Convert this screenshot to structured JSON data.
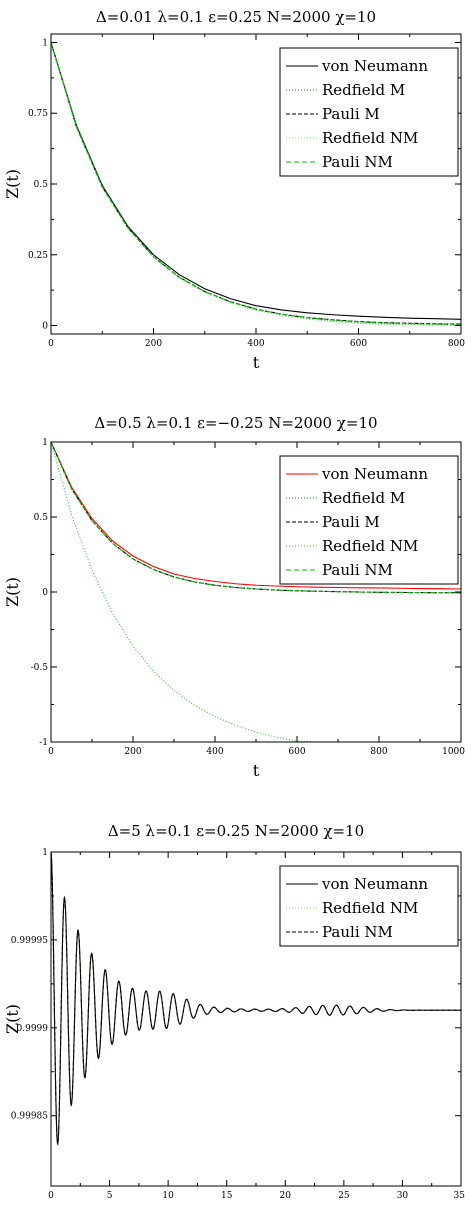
{
  "chart_data": [
    {
      "type": "line",
      "title": "Δ=0.01  λ=0.1  ε=0.25  N=2000  χ=10",
      "xlabel": "t",
      "ylabel": "Z(t)",
      "xlim": [
        0,
        800
      ],
      "ylim": [
        -0.03,
        1.03
      ],
      "xticks": [
        0,
        200,
        400,
        600,
        800
      ],
      "yticks": [
        0,
        0.25,
        0.5,
        0.75,
        1
      ],
      "ytick_labels": [
        "0",
        "0.25",
        "0.5",
        "0.75",
        "1"
      ],
      "grid": false,
      "legend": "top-right",
      "x": [
        0,
        50,
        100,
        150,
        200,
        250,
        300,
        350,
        400,
        450,
        500,
        550,
        600,
        650,
        700,
        750,
        800
      ],
      "series": [
        {
          "name": "von Neumann",
          "color": "#000000",
          "dash": "none",
          "values": [
            1,
            0.705,
            0.495,
            0.35,
            0.25,
            0.18,
            0.13,
            0.095,
            0.07,
            0.055,
            0.045,
            0.038,
            0.033,
            0.029,
            0.026,
            0.024,
            0.022
          ]
        },
        {
          "name": "Redfield M",
          "color": "#1a9a1a",
          "dash": "1,2",
          "values": [
            1,
            0.7,
            0.49,
            0.345,
            0.243,
            0.17,
            0.118,
            0.082,
            0.055,
            0.037,
            0.024,
            0.015,
            0.009,
            0.005,
            0.003,
            0.002,
            0.001
          ]
        },
        {
          "name": "Pauli M",
          "color": "#000000",
          "dash": "4,2",
          "values": [
            1,
            0.7,
            0.49,
            0.345,
            0.243,
            0.171,
            0.12,
            0.084,
            0.058,
            0.04,
            0.028,
            0.02,
            0.014,
            0.01,
            0.008,
            0.006,
            0.005
          ]
        },
        {
          "name": "Redfield NM",
          "color": "#66ee66",
          "dash": "1,2",
          "values": [
            1,
            0.7,
            0.49,
            0.344,
            0.242,
            0.169,
            0.117,
            0.081,
            0.054,
            0.036,
            0.023,
            0.014,
            0.008,
            0.004,
            0.002,
            0.001,
            0
          ]
        },
        {
          "name": "Pauli NM",
          "color": "#00bb00",
          "dash": "5,3",
          "values": [
            1,
            0.7,
            0.49,
            0.345,
            0.243,
            0.171,
            0.12,
            0.084,
            0.058,
            0.04,
            0.028,
            0.019,
            0.013,
            0.009,
            0.007,
            0.005,
            0.004
          ]
        }
      ]
    },
    {
      "type": "line",
      "title": "Δ=0.5  λ=0.1  ε=−0.25  N=2000  χ=10",
      "xlabel": "t",
      "ylabel": "Z(t)",
      "xlim": [
        0,
        1000
      ],
      "ylim": [
        -1.0,
        1.0
      ],
      "xticks": [
        0,
        200,
        400,
        600,
        800,
        1000
      ],
      "yticks": [
        -1,
        -0.5,
        0,
        0.5,
        1
      ],
      "ytick_labels": [
        "-1",
        "-0.5",
        "0",
        "0.5",
        "1"
      ],
      "grid": false,
      "legend": "top-right",
      "x": [
        0,
        50,
        100,
        150,
        200,
        250,
        300,
        350,
        400,
        450,
        500,
        550,
        600,
        650,
        700,
        750,
        800,
        850,
        900,
        950,
        1000
      ],
      "series": [
        {
          "name": "von Neumann",
          "color": "#ff0000",
          "dash": "none",
          "values": [
            1,
            0.7,
            0.49,
            0.34,
            0.24,
            0.17,
            0.12,
            0.09,
            0.07,
            0.055,
            0.045,
            0.04,
            0.035,
            0.032,
            0.03,
            0.028,
            0.027,
            0.025,
            0.023,
            0.022,
            0.02
          ]
        },
        {
          "name": "Redfield M",
          "color": "#1a9a1a",
          "dash": "1,2",
          "values": [
            1,
            0.69,
            0.475,
            0.325,
            0.22,
            0.15,
            0.1,
            0.067,
            0.045,
            0.03,
            0.02,
            0.013,
            0.008,
            0.005,
            0.002,
            0,
            -0.002,
            -0.003,
            -0.004,
            -0.005,
            -0.005
          ]
        },
        {
          "name": "Pauli M",
          "color": "#000000",
          "dash": "4,2",
          "values": [
            1,
            0.69,
            0.475,
            0.325,
            0.22,
            0.15,
            0.1,
            0.067,
            0.045,
            0.03,
            0.02,
            0.013,
            0.008,
            0.005,
            0.002,
            0,
            -0.002,
            -0.003,
            -0.004,
            -0.005,
            -0.005
          ]
        },
        {
          "name": "Redfield NM",
          "color": "#33bb33",
          "dash": "1,2",
          "values": [
            1,
            0.516,
            0.145,
            -0.14,
            -0.36,
            -0.528,
            -0.656,
            -0.755,
            -0.831,
            -0.889,
            -0.934,
            -0.968,
            -0.994,
            -1.0,
            -1.0,
            -1.0,
            -1.0,
            -1.0,
            -1.0,
            -1.0,
            -1.0
          ]
        },
        {
          "name": "Pauli NM",
          "color": "#00bb00",
          "dash": "5,3",
          "values": [
            1,
            0.69,
            0.475,
            0.325,
            0.22,
            0.15,
            0.1,
            0.067,
            0.045,
            0.03,
            0.02,
            0.013,
            0.008,
            0.005,
            0.002,
            0,
            -0.002,
            -0.003,
            -0.004,
            -0.005,
            -0.005
          ]
        }
      ]
    },
    {
      "type": "line",
      "title": "Δ=5  λ=0.1  ε=0.25  N=2000  χ=10",
      "xlabel": "t",
      "ylabel": "Z(t)",
      "xlim": [
        0,
        35
      ],
      "ylim": [
        0.99981,
        1.0
      ],
      "xticks": [
        0,
        5,
        10,
        15,
        20,
        25,
        30,
        35
      ],
      "yticks": [
        0.99985,
        0.9999,
        0.99995,
        1
      ],
      "ytick_labels": [
        "0.99985",
        "0.9999",
        "0.99995",
        "1"
      ],
      "grid": false,
      "legend": "top-right",
      "oscillation": {
        "baseline": 0.99991,
        "period": 1.16,
        "amplitude_start": 9e-05,
        "decay_time": 3.4,
        "envelope_revival": [
          {
            "center": 10,
            "amplitude": 5.5e-06,
            "width": 2.2
          },
          {
            "center": 24,
            "amplitude": 2.8e-06,
            "width": 3.5
          }
        ]
      },
      "series": [
        {
          "name": "von Neumann",
          "color": "#000000",
          "dash": "none"
        },
        {
          "name": "Redfield NM",
          "color": "#66ee66",
          "dash": "1,2"
        },
        {
          "name": "Pauli NM",
          "color": "#000000",
          "dash": "4,2"
        }
      ]
    }
  ]
}
